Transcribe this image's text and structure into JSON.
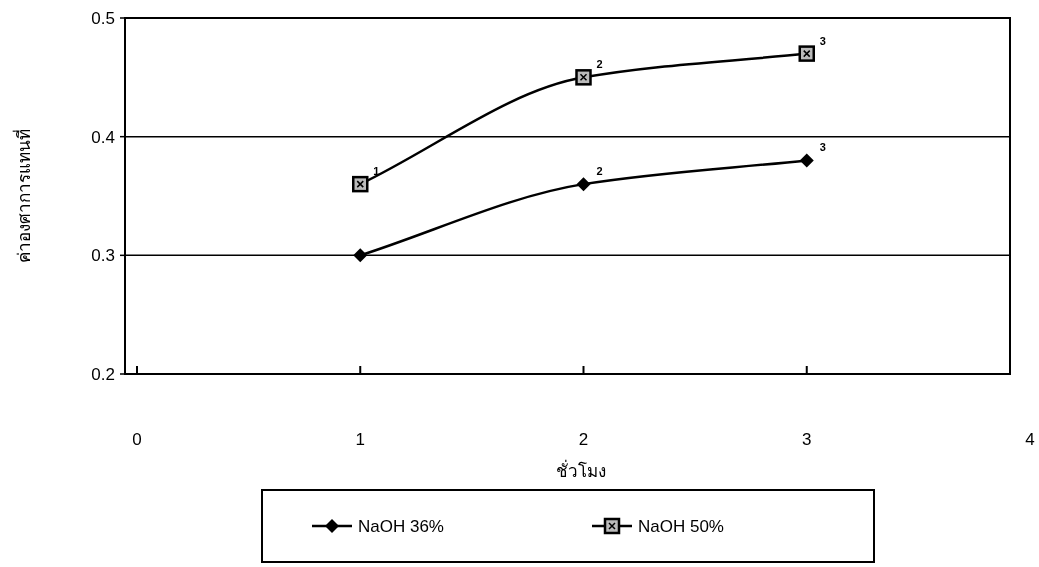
{
  "chart_data": {
    "type": "line",
    "xlabel": "ชั่วโมง",
    "ylabel": "ค่าองศาการแทนที่",
    "x": [
      1,
      2,
      3
    ],
    "series": [
      {
        "name": "NaOH 36%",
        "color": "#000000",
        "marker": "diamond",
        "values": [
          0.3,
          0.36,
          0.38
        ]
      },
      {
        "name": "NaOH 50%",
        "color": "#000000",
        "marker": "square",
        "values": [
          0.36,
          0.45,
          0.47
        ]
      }
    ],
    "annotations": [
      {
        "text": "1",
        "x": 1,
        "y": 0.36
      },
      {
        "text": "2",
        "x": 2,
        "y": 0.45
      },
      {
        "text": "3",
        "x": 3,
        "y": 0.47
      },
      {
        "text": "2",
        "x": 2,
        "y": 0.36
      },
      {
        "text": "3",
        "x": 3,
        "y": 0.38
      }
    ],
    "xlim": [
      0,
      4
    ],
    "xticks": [
      0,
      1,
      2,
      3,
      4
    ],
    "ylim": [
      0.2,
      0.5
    ],
    "yticks": [
      0.2,
      0.3,
      0.4,
      0.5
    ],
    "grid": "y",
    "legend": "bottom",
    "line_style": "solid"
  }
}
